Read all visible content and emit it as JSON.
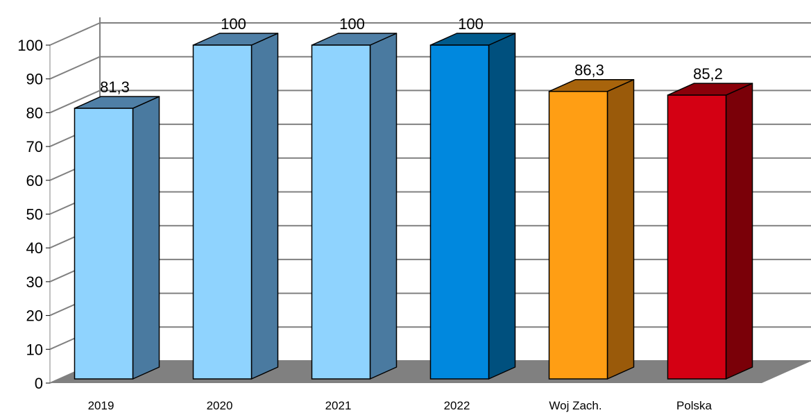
{
  "chart_data": {
    "type": "bar",
    "categories": [
      "2019",
      "2020",
      "2021",
      "2022",
      "Woj Zach.",
      "Polska"
    ],
    "values": [
      81.3,
      100,
      100,
      100,
      86.3,
      85.2
    ],
    "data_labels": [
      "81,3",
      "100",
      "100",
      "100",
      "86,3",
      "85,2"
    ],
    "yticks": [
      "0",
      "10",
      "20",
      "30",
      "40",
      "50",
      "60",
      "70",
      "80",
      "90",
      "100"
    ],
    "ylim": [
      0,
      100
    ],
    "grid": true,
    "three_d": true,
    "legend": "none",
    "bar_colors": [
      {
        "front": "#8fd3fe",
        "side": "#4a7aa0",
        "top": "#4f7fa6"
      },
      {
        "front": "#8fd3fe",
        "side": "#4a7aa0",
        "top": "#4f7fa6"
      },
      {
        "front": "#8fd3fe",
        "side": "#4a7aa0",
        "top": "#4f7fa6"
      },
      {
        "front": "#0088de",
        "side": "#00507e",
        "top": "#005a8c"
      },
      {
        "front": "#ff9e14",
        "side": "#9a5a0a",
        "top": "#a8640c"
      },
      {
        "front": "#d40013",
        "side": "#7a0008",
        "top": "#8a000a"
      }
    ],
    "floor_color": "#808080",
    "grid_color": "#808080"
  }
}
